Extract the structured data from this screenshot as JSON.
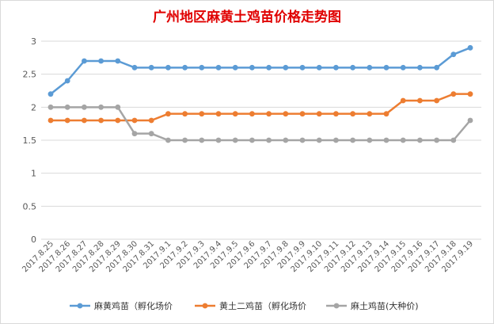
{
  "chart_data": {
    "type": "line",
    "title": "广州地区麻黄土鸡苗价格走势图",
    "xlabel": "",
    "ylabel": "",
    "ylim": [
      0,
      3
    ],
    "yticks": [
      "0",
      "0.5",
      "1",
      "1.5",
      "2",
      "2.5",
      "3"
    ],
    "yticks_values": [
      0,
      0.5,
      1,
      1.5,
      2,
      2.5,
      3
    ],
    "grid": true,
    "legend_position": "bottom",
    "categories": [
      "2017.8.25",
      "2017.8.26",
      "2017.8.27",
      "2017.8.28",
      "2017.8.29",
      "2017.8.30",
      "2017.8.31",
      "2017.9.1",
      "2017.9.2",
      "2017.9.3",
      "2017.9.4",
      "2017.9.5",
      "2017.9.6",
      "2017.9.7",
      "2017.9.8",
      "2017.9.9",
      "2017.9.10",
      "2017.9.11",
      "2017.9.12",
      "2017.9.13",
      "2017.9.14",
      "2017.9.15",
      "2017.9.16",
      "2017.9.17",
      "2017.9.18",
      "2017.9.19"
    ],
    "series": [
      {
        "name": "麻黄鸡苗（孵化场价",
        "color": "#5b9bd5",
        "values": [
          2.2,
          2.4,
          2.7,
          2.7,
          2.7,
          2.6,
          2.6,
          2.6,
          2.6,
          2.6,
          2.6,
          2.6,
          2.6,
          2.6,
          2.6,
          2.6,
          2.6,
          2.6,
          2.6,
          2.6,
          2.6,
          2.6,
          2.6,
          2.6,
          2.8,
          2.9
        ]
      },
      {
        "name": "黄土二鸡苗（孵化场价",
        "color": "#ed7d31",
        "values": [
          1.8,
          1.8,
          1.8,
          1.8,
          1.8,
          1.8,
          1.8,
          1.9,
          1.9,
          1.9,
          1.9,
          1.9,
          1.9,
          1.9,
          1.9,
          1.9,
          1.9,
          1.9,
          1.9,
          1.9,
          1.9,
          2.1,
          2.1,
          2.1,
          2.2,
          2.2
        ]
      },
      {
        "name": "麻土鸡苗(大种价)",
        "color": "#a5a5a5",
        "values": [
          2.0,
          2.0,
          2.0,
          2.0,
          2.0,
          1.6,
          1.6,
          1.5,
          1.5,
          1.5,
          1.5,
          1.5,
          1.5,
          1.5,
          1.5,
          1.5,
          1.5,
          1.5,
          1.5,
          1.5,
          1.5,
          1.5,
          1.5,
          1.5,
          1.5,
          1.8
        ]
      }
    ]
  },
  "colors": {
    "gridline": "#d9d9d9",
    "title": "#e00000",
    "text": "#595959"
  }
}
